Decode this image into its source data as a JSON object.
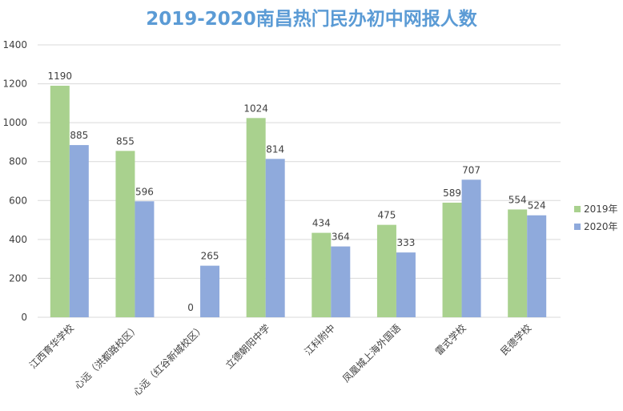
{
  "chart_data": {
    "type": "bar",
    "title": "2019-2020南昌热门民办初中网报人数",
    "xlabel": "",
    "ylabel": "",
    "ylim": [
      0,
      1400
    ],
    "yticks": [
      0,
      200,
      400,
      600,
      800,
      1000,
      1200,
      1400
    ],
    "grid": true,
    "legend_position": "right",
    "categories": [
      "江西育华学校",
      "心远（洪都路校区）",
      "心远（红谷新城校区）",
      "立德朝阳中学",
      "江科附中",
      "凤凰城上海外国语",
      "雷式学校",
      "民德学校"
    ],
    "series": [
      {
        "name": "2019年",
        "color": "#a9d18e",
        "values": [
          1190,
          855,
          0,
          1024,
          434,
          475,
          589,
          554
        ]
      },
      {
        "name": "2020年",
        "color": "#8faadc",
        "values": [
          885,
          596,
          265,
          814,
          364,
          333,
          707,
          524
        ]
      }
    ]
  },
  "colors": {
    "title": "#5b9bd5",
    "grid": "#d9d9d9",
    "axis_text": "#404040"
  }
}
